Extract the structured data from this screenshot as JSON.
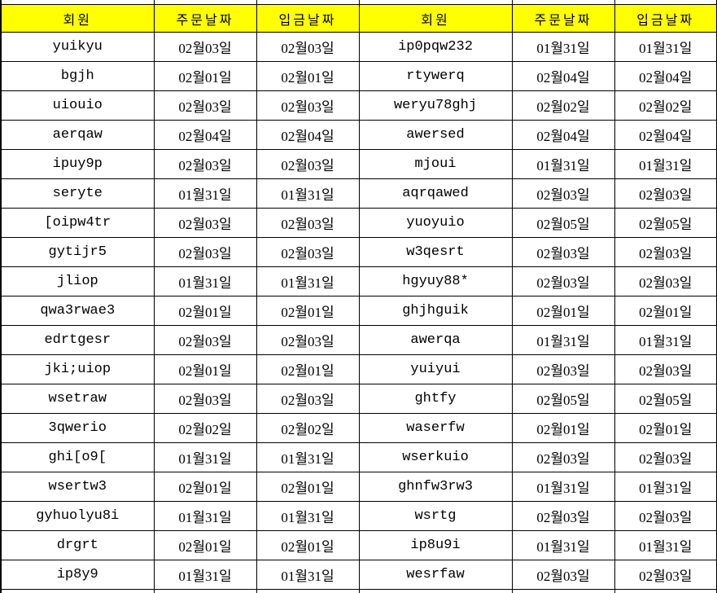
{
  "colors": {
    "header_bg": "#FFFF00",
    "border": "#000000",
    "text": "#000000",
    "cell_bg": "#FFFFFF"
  },
  "header": {
    "cells": [
      "회원",
      "주문날짜",
      "입금날짜",
      "회원",
      "주문날짜",
      "입금날짜"
    ]
  },
  "rows": [
    {
      "cells": [
        "yuikyu",
        "02월03일",
        "02월03일",
        "ip0pqw232",
        "01월31일",
        "01월31일"
      ]
    },
    {
      "cells": [
        "bgjh",
        "02월01일",
        "02월01일",
        "rtywerq",
        "02월04일",
        "02월04일"
      ]
    },
    {
      "cells": [
        "uiouio",
        "02월03일",
        "02월03일",
        "weryu78ghj",
        "02월02일",
        "02월02일"
      ]
    },
    {
      "cells": [
        "aerqaw",
        "02월04일",
        "02월04일",
        "awersed",
        "02월04일",
        "02월04일"
      ]
    },
    {
      "cells": [
        "ipuy9p",
        "02월03일",
        "02월03일",
        "mjoui",
        "01월31일",
        "01월31일"
      ]
    },
    {
      "cells": [
        "seryte",
        "01월31일",
        "01월31일",
        "aqrqawed",
        "02월03일",
        "02월03일"
      ]
    },
    {
      "cells": [
        "[oipw4tr",
        "02월03일",
        "02월03일",
        "yuoyuio",
        "02월05일",
        "02월05일"
      ]
    },
    {
      "cells": [
        "gytijr5",
        "02월03일",
        "02월03일",
        "w3qesrt",
        "02월03일",
        "02월03일"
      ]
    },
    {
      "cells": [
        "jliop",
        "01월31일",
        "01월31일",
        "hgyuy88*",
        "02월03일",
        "02월03일"
      ]
    },
    {
      "cells": [
        "qwa3rwae3",
        "02월01일",
        "02월01일",
        "ghjhguik",
        "02월01일",
        "02월01일"
      ]
    },
    {
      "cells": [
        "edrtgesr",
        "02월03일",
        "02월03일",
        "awerqa",
        "01월31일",
        "01월31일"
      ]
    },
    {
      "cells": [
        "jki;uiop",
        "02월01일",
        "02월01일",
        "yuiyui",
        "02월03일",
        "02월03일"
      ]
    },
    {
      "cells": [
        "wsetraw",
        "02월03일",
        "02월03일",
        "ghtfy",
        "02월05일",
        "02월05일"
      ]
    },
    {
      "cells": [
        "3qwerio",
        "02월02일",
        "02월02일",
        "waserfw",
        "02월01일",
        "02월01일"
      ]
    },
    {
      "cells": [
        "ghi[o9[",
        "01월31일",
        "01월31일",
        "wserkuio",
        "02월03일",
        "02월03일"
      ]
    },
    {
      "cells": [
        "wsertw3",
        "02월01일",
        "02월01일",
        "ghnfw3rw3",
        "01월31일",
        "01월31일"
      ]
    },
    {
      "cells": [
        "gyhuolyu8i",
        "01월31일",
        "01월31일",
        "wsrtg",
        "02월03일",
        "02월03일"
      ]
    },
    {
      "cells": [
        "drgrt",
        "02월01일",
        "02월01일",
        "ip8u9i",
        "01월31일",
        "01월31일"
      ]
    },
    {
      "cells": [
        "ip8y9",
        "01월31일",
        "01월31일",
        "wesrfaw",
        "02월03일",
        "02월03일"
      ]
    }
  ]
}
